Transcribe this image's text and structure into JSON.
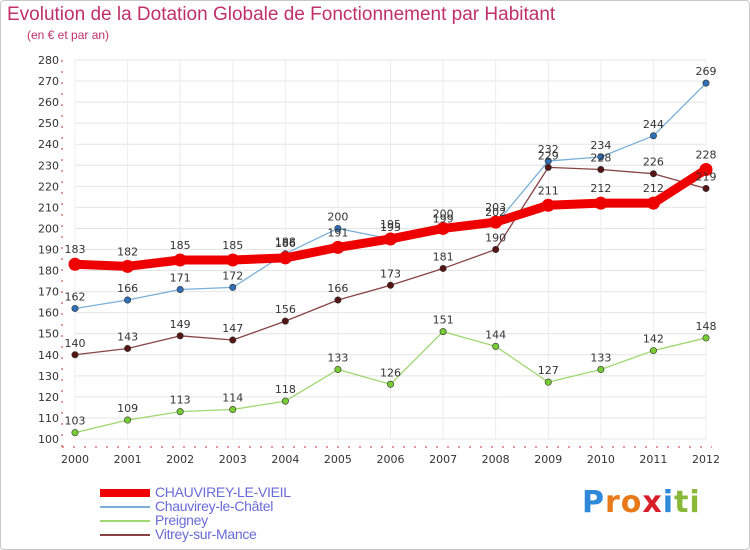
{
  "title": "Evolution de la Dotation Globale de Fonctionnement par Habitant",
  "subtitle": "(en € et par an)",
  "logo": {
    "text": "Proxiti",
    "letters": [
      {
        "ch": "P",
        "color": "#2e8ad8"
      },
      {
        "ch": "r",
        "color": "#e87a1a"
      },
      {
        "ch": "o",
        "color": "#e87a1a"
      },
      {
        "ch": "x",
        "color": "#d81e28"
      },
      {
        "ch": "i",
        "color": "#2e8ad8"
      },
      {
        "ch": "t",
        "color": "#8ab838"
      },
      {
        "ch": "i",
        "color": "#8ab838"
      }
    ]
  },
  "chart_data": {
    "type": "line",
    "title": "Evolution de la Dotation Globale de Fonctionnement par Habitant",
    "subtitle": "(en € et par an)",
    "x": [
      "2000",
      "2001",
      "2002",
      "2003",
      "2004",
      "2005",
      "2006",
      "2007",
      "2008",
      "2009",
      "2010",
      "2011",
      "2012"
    ],
    "ylim": [
      100,
      280
    ],
    "yticks": [
      100,
      110,
      120,
      130,
      140,
      150,
      160,
      170,
      180,
      190,
      200,
      210,
      220,
      230,
      240,
      250,
      260,
      270,
      280
    ],
    "grid": true,
    "legend_position": "bottom-left",
    "series": [
      {
        "name": "CHAUVIREY-LE-VIEIL",
        "color": "#ee0000",
        "marker": "#ee0000",
        "bold": true,
        "values": [
          183,
          182,
          185,
          185,
          186,
          191,
          195,
          200,
          203,
          211,
          212,
          212,
          228
        ]
      },
      {
        "name": "Chauvirey-le-Châtel",
        "color": "#7aafd8",
        "marker": "#2f6fb8",
        "bold": false,
        "values": [
          162,
          166,
          171,
          172,
          188,
          200,
          195,
          199,
          202,
          232,
          234,
          244,
          269
        ]
      },
      {
        "name": "Preigney",
        "color": "#9fd870",
        "marker": "#77cc33",
        "bold": false,
        "values": [
          103,
          109,
          113,
          114,
          118,
          133,
          126,
          151,
          144,
          127,
          133,
          142,
          148
        ]
      },
      {
        "name": "Vitrey-sur-Mance",
        "color": "#884444",
        "marker": "#551515",
        "bold": false,
        "values": [
          140,
          143,
          149,
          147,
          156,
          166,
          173,
          181,
          190,
          229,
          228,
          226,
          219
        ]
      }
    ]
  }
}
